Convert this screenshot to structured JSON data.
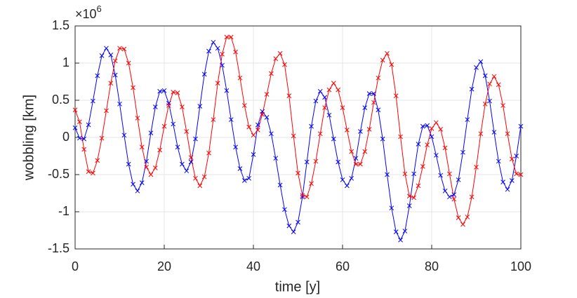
{
  "chart_data": {
    "type": "line",
    "xlabel": "time [y]",
    "ylabel": "wobbling [km]",
    "y_exponent_base": "×10",
    "y_exponent": 6,
    "x": [
      0,
      1,
      2,
      3,
      4,
      5,
      6,
      7,
      8,
      9,
      10,
      11,
      12,
      13,
      14,
      15,
      16,
      17,
      18,
      19,
      20,
      21,
      22,
      23,
      24,
      25,
      26,
      27,
      28,
      29,
      30,
      31,
      32,
      33,
      34,
      35,
      36,
      37,
      38,
      39,
      40,
      41,
      42,
      43,
      44,
      45,
      46,
      47,
      48,
      49,
      50,
      51,
      52,
      53,
      54,
      55,
      56,
      57,
      58,
      59,
      60,
      61,
      62,
      63,
      64,
      65,
      66,
      67,
      68,
      69,
      70,
      71,
      72,
      73,
      74,
      75,
      76,
      77,
      78,
      79,
      80,
      81,
      82,
      83,
      84,
      85,
      86,
      87,
      88,
      89,
      90,
      91,
      92,
      93,
      94,
      95,
      96,
      97,
      98,
      99,
      100
    ],
    "series": [
      {
        "color": "#0000ff",
        "values": [
          0.13,
          -0.01,
          -0.02,
          0.17,
          0.49,
          0.83,
          1.1,
          1.2,
          1.11,
          0.84,
          0.45,
          0.03,
          -0.36,
          -0.63,
          -0.72,
          -0.61,
          -0.32,
          0.06,
          0.41,
          0.62,
          0.63,
          0.46,
          0.18,
          -0.13,
          -0.36,
          -0.45,
          -0.33,
          -0.02,
          0.42,
          0.85,
          1.16,
          1.28,
          1.2,
          0.97,
          0.63,
          0.24,
          -0.13,
          -0.42,
          -0.58,
          -0.55,
          -0.23,
          0.17,
          0.35,
          0.27,
          0.05,
          -0.28,
          -0.64,
          -0.97,
          -1.19,
          -1.27,
          -1.14,
          -0.8,
          -0.33,
          0.15,
          0.49,
          0.62,
          0.54,
          0.3,
          -0.02,
          -0.33,
          -0.57,
          -0.65,
          -0.55,
          -0.28,
          0.08,
          0.4,
          0.59,
          0.59,
          0.37,
          -0.02,
          -0.5,
          -0.95,
          -1.27,
          -1.38,
          -1.26,
          -0.92,
          -0.49,
          -0.09,
          0.15,
          0.16,
          0.01,
          -0.24,
          -0.51,
          -0.72,
          -0.8,
          -0.77,
          -0.57,
          -0.2,
          0.24,
          0.65,
          0.94,
          1.02,
          0.83,
          0.49,
          0.07,
          -0.32,
          -0.6,
          -0.7,
          -0.58,
          -0.25,
          0.15
        ]
      },
      {
        "color": "#ff0000",
        "values": [
          0.37,
          0.21,
          -0.16,
          -0.46,
          -0.48,
          -0.31,
          -0.01,
          0.36,
          0.73,
          1.03,
          1.2,
          1.19,
          1.0,
          0.67,
          0.26,
          -0.13,
          -0.4,
          -0.5,
          -0.41,
          -0.17,
          0.15,
          0.43,
          0.61,
          0.6,
          0.41,
          0.08,
          -0.27,
          -0.55,
          -0.65,
          -0.53,
          -0.21,
          0.24,
          0.73,
          1.12,
          1.35,
          1.35,
          1.15,
          0.8,
          0.43,
          0.14,
          0.03,
          0.1,
          0.31,
          0.58,
          0.86,
          1.06,
          1.13,
          0.98,
          0.56,
          0.02,
          -0.48,
          -0.78,
          -0.8,
          -0.62,
          -0.32,
          0.05,
          0.4,
          0.64,
          0.73,
          0.64,
          0.4,
          0.1,
          -0.19,
          -0.36,
          -0.36,
          -0.19,
          0.11,
          0.47,
          0.8,
          1.04,
          1.13,
          0.98,
          0.56,
          0.01,
          -0.49,
          -0.79,
          -0.81,
          -0.65,
          -0.39,
          -0.1,
          0.12,
          0.2,
          0.11,
          -0.14,
          -0.49,
          -0.83,
          -1.08,
          -1.17,
          -1.07,
          -0.8,
          -0.4,
          0.05,
          0.45,
          0.72,
          0.82,
          0.71,
          0.43,
          0.05,
          -0.29,
          -0.49,
          -0.5
        ]
      }
    ],
    "xlim": [
      0,
      100
    ],
    "xticks": [
      0,
      20,
      40,
      60,
      80,
      100
    ],
    "ylim": [
      -1.5,
      1.5
    ],
    "yticks": [
      -1.5,
      -1,
      -0.5,
      0,
      0.5,
      1,
      1.5
    ],
    "grid": true,
    "markers": true
  }
}
